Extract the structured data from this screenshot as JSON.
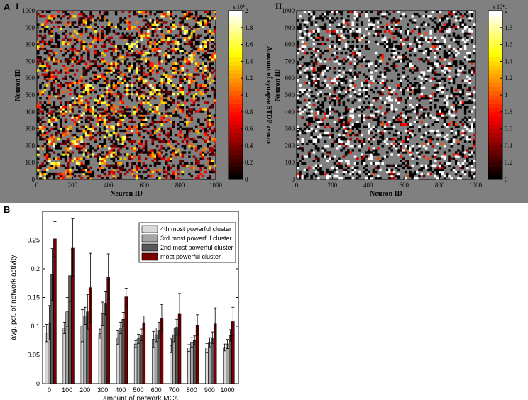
{
  "panel_a": {
    "label": "A",
    "heatmaps": [
      {
        "sublabel": "I",
        "ylabel": "Neuron ID",
        "xlabel": "Neuron ID"
      },
      {
        "sublabel": "II",
        "ylabel": "Neuron ID",
        "xlabel": "Neuron ID"
      }
    ],
    "colorbar": {
      "label": "Amount of synapse STDP events",
      "exponent": "x 10⁴"
    }
  },
  "panel_b": {
    "label": "B"
  },
  "colors": {
    "bg_gray": "#808080",
    "series": [
      "#d9d9d9",
      "#a6a6a6",
      "#595959",
      "#7a0000"
    ]
  },
  "chart_data": [
    {
      "type": "heatmap",
      "title": "I",
      "xlabel": "Neuron ID",
      "ylabel": "Neuron ID",
      "xlim": [
        0,
        1000
      ],
      "ylim": [
        0,
        1000
      ],
      "xticks": [
        "0",
        "200",
        "400",
        "600",
        "800",
        "1000"
      ],
      "yticks": [
        "0",
        "100",
        "200",
        "300",
        "400",
        "500",
        "600",
        "700",
        "800",
        "900",
        "1000"
      ],
      "colorbar": {
        "label": "Amount of synapse STDP events",
        "range": [
          0,
          20000
        ],
        "ticks": [
          "0",
          "0.2",
          "0.4",
          "0.6",
          "0.8",
          "1",
          "1.2",
          "1.4",
          "1.6",
          "1.8",
          "2"
        ],
        "exponent": "x 10⁴"
      },
      "pattern": "checkerboard"
    },
    {
      "type": "heatmap",
      "title": "II",
      "xlabel": "Neuron ID",
      "ylabel": "Neuron ID",
      "xlim": [
        0,
        1000
      ],
      "ylim": [
        0,
        1000
      ],
      "xticks": [
        "0",
        "200",
        "400",
        "600",
        "800",
        "1000"
      ],
      "yticks": [
        "0",
        "100",
        "200",
        "300",
        "400",
        "500",
        "600",
        "700",
        "800",
        "900",
        "1000"
      ],
      "colorbar": {
        "label": "Amount of synapse STDP events",
        "range": [
          0,
          20000
        ],
        "ticks": [
          "0",
          "0.2",
          "0.4",
          "0.6",
          "0.8",
          "1",
          "1.2",
          "1.4",
          "1.6",
          "1.8",
          "2"
        ],
        "exponent": "x 10⁴"
      },
      "pattern": "sparse"
    },
    {
      "type": "bar",
      "title": "",
      "xlabel": "amount of network MCs",
      "ylabel": "avg. pct. of network activity",
      "categories": [
        "0",
        "100",
        "200",
        "300",
        "400",
        "500",
        "600",
        "700",
        "800",
        "900",
        "1000"
      ],
      "ylim": [
        0,
        0.3
      ],
      "yticks": [
        "0",
        "0.05",
        "0.1",
        "0.15",
        "0.2",
        "0.25"
      ],
      "legend_position": "top-right",
      "series": [
        {
          "name": "4th most powerful cluster",
          "values": [
            0.088,
            0.097,
            0.101,
            0.087,
            0.08,
            0.069,
            0.077,
            0.066,
            0.062,
            0.062,
            0.063
          ],
          "errors": [
            0.015,
            0.01,
            0.028,
            0.008,
            0.012,
            0.006,
            0.014,
            0.012,
            0.006,
            0.008,
            0.006
          ]
        },
        {
          "name": "3rd most powerful cluster",
          "values": [
            0.106,
            0.125,
            0.118,
            0.122,
            0.097,
            0.078,
            0.085,
            0.085,
            0.072,
            0.072,
            0.069
          ],
          "errors": [
            0.03,
            0.025,
            0.015,
            0.02,
            0.01,
            0.008,
            0.012,
            0.012,
            0.008,
            0.008,
            0.008
          ]
        },
        {
          "name": "2nd most powerful cluster",
          "values": [
            0.19,
            0.188,
            0.125,
            0.14,
            0.112,
            0.085,
            0.093,
            0.098,
            0.075,
            0.08,
            0.084
          ],
          "errors": [
            0.045,
            0.045,
            0.03,
            0.02,
            0.012,
            0.01,
            0.014,
            0.014,
            0.008,
            0.01,
            0.01
          ]
        },
        {
          "name": "most powerful cluster",
          "values": [
            0.252,
            0.237,
            0.167,
            0.186,
            0.151,
            0.106,
            0.113,
            0.121,
            0.102,
            0.104,
            0.108
          ],
          "errors": [
            0.03,
            0.05,
            0.06,
            0.04,
            0.015,
            0.012,
            0.025,
            0.036,
            0.018,
            0.028,
            0.025
          ]
        }
      ]
    }
  ]
}
